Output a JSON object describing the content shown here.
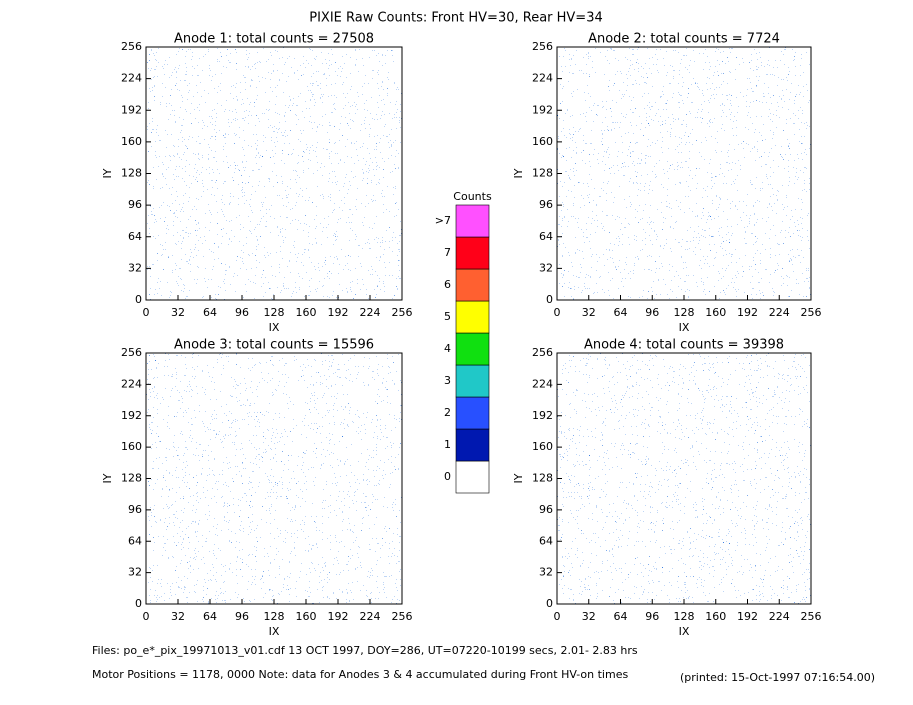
{
  "title": "PIXIE Raw Counts:  Front HV=30, Rear HV=34",
  "chart_data": [
    {
      "type": "heatmap",
      "title": "Anode 1: total counts = 27508",
      "xlabel": "IX",
      "ylabel": "IY",
      "xlim": [
        0,
        256
      ],
      "ylim": [
        0,
        256
      ],
      "xticks": [
        0,
        32,
        64,
        96,
        128,
        160,
        192,
        224,
        256
      ],
      "yticks": [
        0,
        32,
        64,
        96,
        128,
        160,
        192,
        224,
        256
      ]
    },
    {
      "type": "heatmap",
      "title": "Anode 2: total counts = 7724",
      "xlabel": "IX",
      "ylabel": "IY",
      "xlim": [
        0,
        256
      ],
      "ylim": [
        0,
        256
      ],
      "xticks": [
        0,
        32,
        64,
        96,
        128,
        160,
        192,
        224,
        256
      ],
      "yticks": [
        0,
        32,
        64,
        96,
        128,
        160,
        192,
        224,
        256
      ]
    },
    {
      "type": "heatmap",
      "title": "Anode 3: total counts = 15596",
      "xlabel": "IX",
      "ylabel": "IY",
      "xlim": [
        0,
        256
      ],
      "ylim": [
        0,
        256
      ],
      "xticks": [
        0,
        32,
        64,
        96,
        128,
        160,
        192,
        224,
        256
      ],
      "yticks": [
        0,
        32,
        64,
        96,
        128,
        160,
        192,
        224,
        256
      ]
    },
    {
      "type": "heatmap",
      "title": "Anode 4: total counts = 39398",
      "xlabel": "IX",
      "ylabel": "IY",
      "xlim": [
        0,
        256
      ],
      "ylim": [
        0,
        256
      ],
      "xticks": [
        0,
        32,
        64,
        96,
        128,
        160,
        192,
        224,
        256
      ],
      "yticks": [
        0,
        32,
        64,
        96,
        128,
        160,
        192,
        224,
        256
      ]
    }
  ],
  "colorbar": {
    "title": "Counts",
    "levels": [
      {
        "label": "0",
        "color": "#ffffff"
      },
      {
        "label": "1",
        "color": "#0018b0"
      },
      {
        "label": "2",
        "color": "#2850ff"
      },
      {
        "label": "3",
        "color": "#20c8c8"
      },
      {
        "label": "4",
        "color": "#10e010"
      },
      {
        "label": "5",
        "color": "#ffff00"
      },
      {
        "label": "6",
        "color": "#ff6030"
      },
      {
        "label": "7",
        "color": "#ff0018"
      },
      {
        "label": ">7",
        "color": "#ff50ff"
      }
    ]
  },
  "footer": {
    "files": "Files: po_e*_pix_19971013_v01.cdf    13 OCT 1997, DOY=286, UT=07220-10199 secs,  2.01- 2.83 hrs",
    "motor": "Motor Positions = 1178, 0000   Note: data for Anodes 3 & 4 accumulated during Front HV-on times",
    "printed": "(printed: 15-Oct-1997 07:16:54.00)"
  }
}
